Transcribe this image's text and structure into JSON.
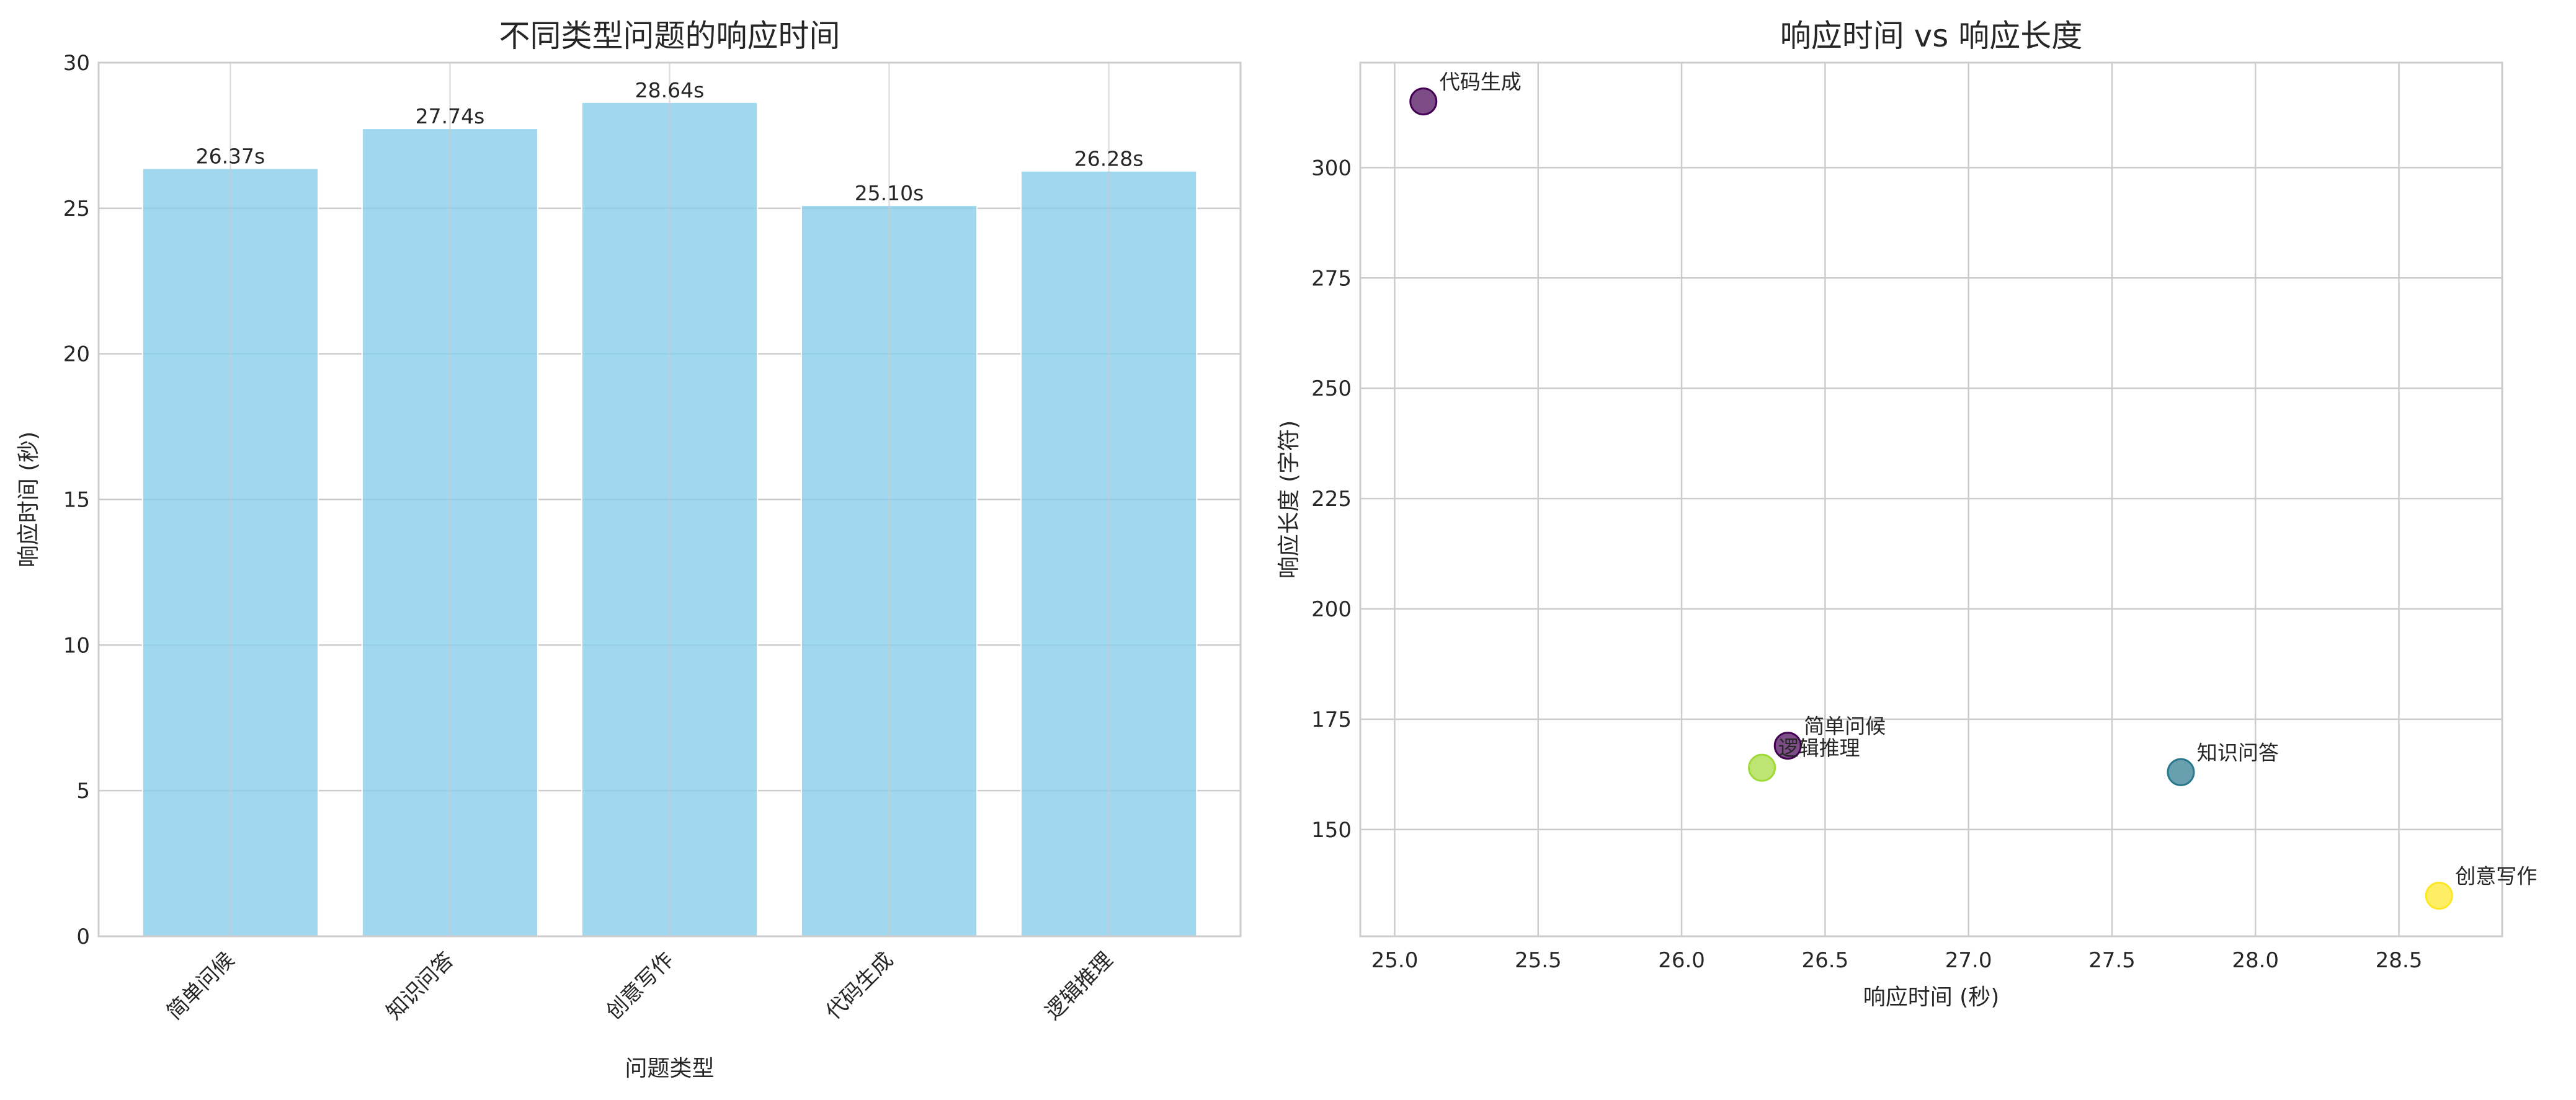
{
  "chart_data": [
    {
      "type": "bar",
      "title": "不同类型问题的响应时间",
      "xlabel": "问题类型",
      "ylabel": "响应时间 (秒)",
      "categories": [
        "简单问候",
        "知识问答",
        "创意写作",
        "代码生成",
        "逻辑推理"
      ],
      "values": [
        26.37,
        27.74,
        28.64,
        25.1,
        26.28
      ],
      "data_labels": [
        "26.37s",
        "27.74s",
        "28.64s",
        "25.10s",
        "26.28s"
      ],
      "ylim": [
        0,
        30
      ],
      "yticks": [
        0,
        5,
        10,
        15,
        20,
        25,
        30
      ],
      "bar_color": "#87ceeb",
      "grid": true
    },
    {
      "type": "scatter",
      "title": "响应时间 vs 响应长度",
      "xlabel": "响应时间 (秒)",
      "ylabel": "响应长度 (字符)",
      "points": [
        {
          "label": "简单问候",
          "x": 26.37,
          "y": 169,
          "color": "#440154"
        },
        {
          "label": "知识问答",
          "x": 27.74,
          "y": 163,
          "color": "#2a788e"
        },
        {
          "label": "创意写作",
          "x": 28.64,
          "y": 135,
          "color": "#fde725"
        },
        {
          "label": "代码生成",
          "x": 25.1,
          "y": 315,
          "color": "#440154"
        },
        {
          "label": "逻辑推理",
          "x": 26.28,
          "y": 164,
          "color": "#a0da39"
        }
      ],
      "xlim": [
        24.88,
        28.86
      ],
      "ylim": [
        125.8,
        323.8
      ],
      "xticks": [
        "25.0",
        "25.5",
        "26.0",
        "26.5",
        "27.0",
        "27.5",
        "28.0",
        "28.5"
      ],
      "yticks": [
        "150",
        "175",
        "200",
        "225",
        "250",
        "275",
        "300"
      ],
      "grid": true
    }
  ]
}
